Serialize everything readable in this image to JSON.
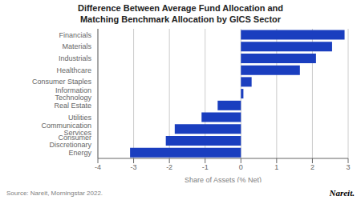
{
  "chart_data": {
    "type": "bar",
    "orientation": "horizontal",
    "title": "Difference Between Average Fund Allocation and\nMatching Benchmark Allocation by GICS Sector",
    "categories": [
      "Financials",
      "Materials",
      "Industrials",
      "Healthcare",
      "Consumer Staples",
      "Information Technology",
      "Real Estate",
      "Utilities",
      "Communication Services",
      "Consumer Discretionary",
      "Energy"
    ],
    "values": [
      2.9,
      2.55,
      2.1,
      1.65,
      0.3,
      0.07,
      -0.65,
      -1.1,
      -1.85,
      -2.1,
      -3.1
    ],
    "color": "#1a3ebf",
    "xlabel": "Share of Assets (% Net)",
    "xlim": [
      -4,
      3
    ],
    "xticks": [
      -4,
      -3,
      -2,
      -1,
      0,
      1,
      2,
      3
    ],
    "grid": true,
    "annotations": [
      "Source: Nareit, Morningstar 2022.",
      "Nareit."
    ]
  }
}
